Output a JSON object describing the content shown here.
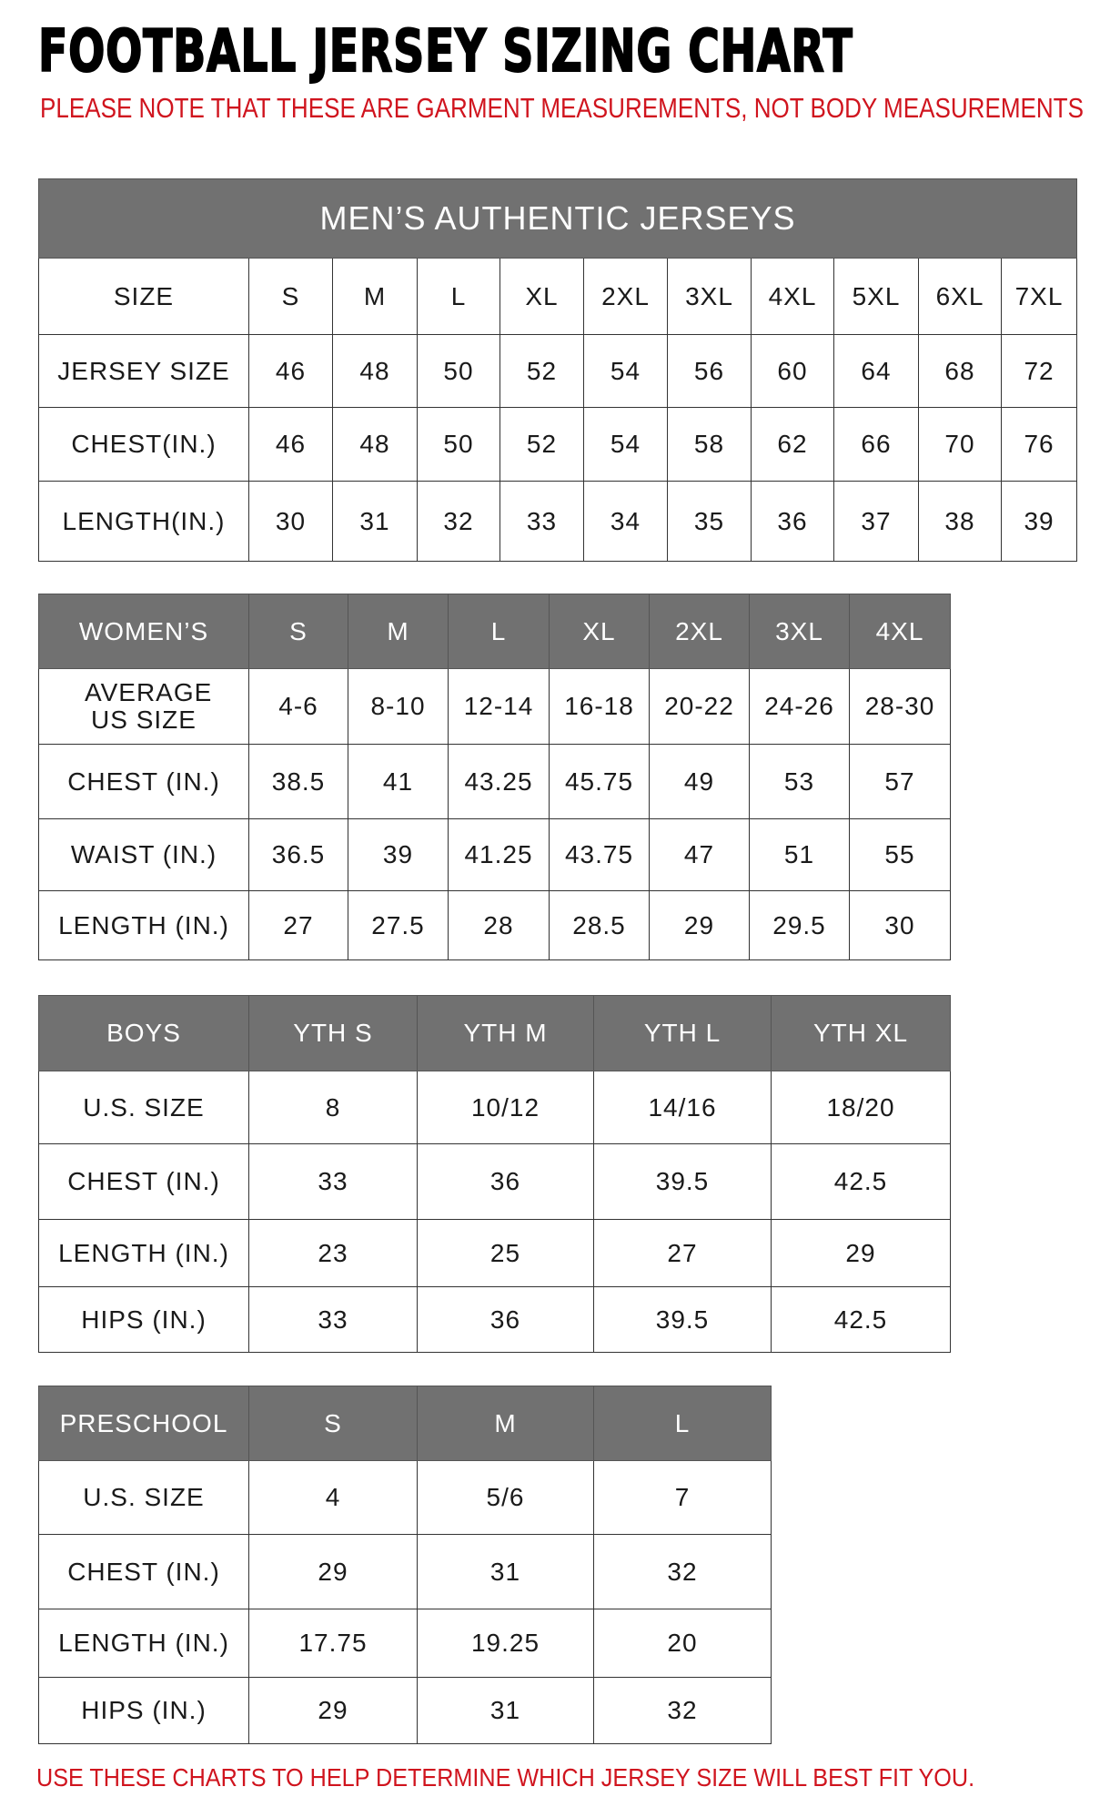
{
  "title": "FOOTBALL JERSEY SIZING CHART",
  "note": "PLEASE NOTE THAT THESE ARE GARMENT MEASUREMENTS, NOT BODY MEASUREMENTS",
  "footer": "USE THESE CHARTS TO HELP DETERMINE WHICH JERSEY SIZE WILL BEST FIT YOU.",
  "colors": {
    "header_bg": "#717171",
    "accent_red": "#d0141e"
  },
  "tables": [
    {
      "banner": "MEN’S AUTHENTIC JERSEYS",
      "header": [
        "SIZE",
        "S",
        "M",
        "L",
        "XL",
        "2XL",
        "3XL",
        "4XL",
        "5XL",
        "6XL",
        "7XL"
      ],
      "header_style": "plain",
      "rows": [
        [
          "JERSEY SIZE",
          "46",
          "48",
          "50",
          "52",
          "54",
          "56",
          "60",
          "64",
          "68",
          "72"
        ],
        [
          "CHEST(IN.)",
          "46",
          "48",
          "50",
          "52",
          "54",
          "58",
          "62",
          "66",
          "70",
          "76"
        ],
        [
          "LENGTH(IN.)",
          "30",
          "31",
          "32",
          "33",
          "34",
          "35",
          "36",
          "37",
          "38",
          "39"
        ]
      ]
    },
    {
      "header": [
        "WOMEN’S",
        "S",
        "M",
        "L",
        "XL",
        "2XL",
        "3XL",
        "4XL"
      ],
      "header_style": "gray",
      "rows": [
        [
          "AVERAGE US SIZE",
          "4-6",
          "8-10",
          "12-14",
          "16-18",
          "20-22",
          "24-26",
          "28-30"
        ],
        [
          "CHEST (IN.)",
          "38.5",
          "41",
          "43.25",
          "45.75",
          "49",
          "53",
          "57"
        ],
        [
          "WAIST (IN.)",
          "36.5",
          "39",
          "41.25",
          "43.75",
          "47",
          "51",
          "55"
        ],
        [
          "LENGTH (IN.)",
          "27",
          "27.5",
          "28",
          "28.5",
          "29",
          "29.5",
          "30"
        ]
      ]
    },
    {
      "header": [
        "BOYS",
        "YTH S",
        "YTH M",
        "YTH L",
        "YTH XL"
      ],
      "header_style": "gray",
      "rows": [
        [
          "U.S. SIZE",
          "8",
          "10/12",
          "14/16",
          "18/20"
        ],
        [
          "CHEST (IN.)",
          "33",
          "36",
          "39.5",
          "42.5"
        ],
        [
          "LENGTH (IN.)",
          "23",
          "25",
          "27",
          "29"
        ],
        [
          "HIPS (IN.)",
          "33",
          "36",
          "39.5",
          "42.5"
        ]
      ]
    },
    {
      "header": [
        "PRESCHOOL",
        "S",
        "M",
        "L"
      ],
      "header_style": "gray",
      "rows": [
        [
          "U.S. SIZE",
          "4",
          "5/6",
          "7"
        ],
        [
          "CHEST (IN.)",
          "29",
          "31",
          "32"
        ],
        [
          "LENGTH (IN.)",
          "17.75",
          "19.25",
          "20"
        ],
        [
          "HIPS (IN.)",
          "29",
          "31",
          "32"
        ]
      ]
    }
  ]
}
